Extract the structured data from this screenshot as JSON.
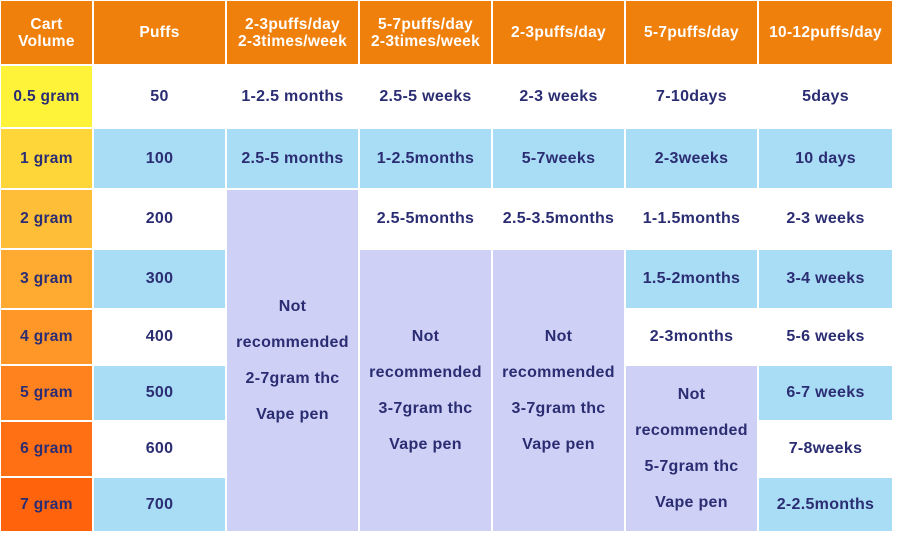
{
  "headers": [
    [
      "Cart",
      "Volume"
    ],
    [
      "Puffs"
    ],
    [
      "2-3puffs/day",
      "2-3times/week"
    ],
    [
      "5-7puffs/day",
      "2-3times/week"
    ],
    [
      "2-3puffs/day"
    ],
    [
      "5-7puffs/day"
    ],
    [
      "10-12puffs/day"
    ]
  ],
  "volumes": [
    "0.5 gram",
    "1 gram",
    "2 gram",
    "3 gram",
    "4 gram",
    "5 gram",
    "6 gram",
    "7 gram"
  ],
  "puffs": [
    "50",
    "100",
    "200",
    "300",
    "400",
    "500",
    "600",
    "700"
  ],
  "col_a": [
    "1-2.5 months",
    "2.5-5 months"
  ],
  "col_b": [
    "2.5-5 weeks",
    "1-2.5months",
    "2.5-5months"
  ],
  "col_c": [
    "2-3 weeks",
    "5-7weeks",
    "2.5-3.5months"
  ],
  "col_d": [
    "7-10days",
    "2-3weeks",
    "1-1.5months",
    "1.5-2months",
    "2-3months"
  ],
  "col_e": [
    "5days",
    "10 days",
    "2-3 weeks",
    "3-4 weeks",
    "5-6 weeks",
    "6-7 weeks",
    "7-8weeks",
    "2-2.5months"
  ],
  "not_rec_a": [
    "Not",
    "recommended",
    "2-7gram thc",
    "Vape pen"
  ],
  "not_rec_b": [
    "Not",
    "recommended",
    "3-7gram thc",
    "Vape pen"
  ],
  "not_rec_c": [
    "Not",
    "recommended",
    "3-7gram thc",
    "Vape pen"
  ],
  "not_rec_d": [
    "Not",
    "recommended",
    "5-7gram thc",
    "Vape pen"
  ],
  "colors": {
    "header": "#f0800c",
    "blue_row": "#a9dcf5",
    "not_recommended": "#cfd0f5",
    "text": "#2b2d73",
    "volume_gradient_top": "#fff33a",
    "volume_gradient_bottom": "#ff6a0a"
  }
}
